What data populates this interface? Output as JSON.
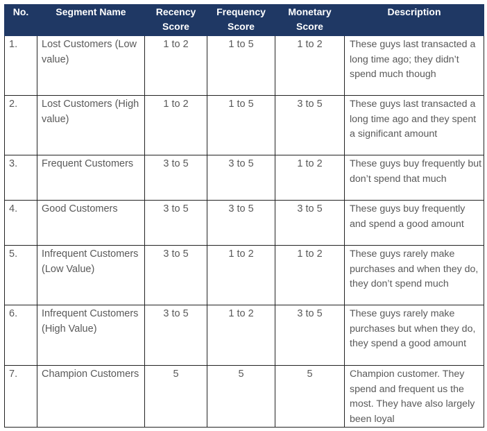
{
  "table": {
    "header": [
      "No.",
      "Segment Name",
      "Recency Score",
      "Frequency Score",
      "Monetary Score",
      "Description"
    ],
    "rows": [
      [
        "1.",
        "Lost Customers (Low value)",
        "1 to 2",
        "1 to 5",
        "1 to 2",
        "These guys last transacted a long time ago; they didn’t spend much though"
      ],
      [
        "2.",
        "Lost Customers (High value)",
        "1 to 2",
        "1 to 5",
        "3 to 5",
        "These guys last transacted a long time ago and they spent a significant amount"
      ],
      [
        "3.",
        "Frequent Customers",
        "3 to 5",
        "3 to 5",
        "1 to 2",
        "These guys buy frequently but don’t spend that much"
      ],
      [
        "4.",
        "Good Customers",
        "3 to 5",
        "3 to 5",
        "3 to 5",
        "These guys buy frequently and spend a good amount"
      ],
      [
        "5.",
        "Infrequent Customers (Low Value)",
        "3 to 5",
        "1 to 2",
        "1 to 2",
        "These guys rarely make purchases and when they do, they don’t spend much"
      ],
      [
        "6.",
        "Infrequent Customers (High Value)",
        "3 to 5",
        "1 to 2",
        "3 to 5",
        "These guys rarely make purchases but when they do, they spend a good amount"
      ],
      [
        "7.",
        "Champion Customers",
        "5",
        "5",
        "5",
        "Champion customer. They spend and frequent us the most. They have also largely been loyal"
      ]
    ]
  }
}
